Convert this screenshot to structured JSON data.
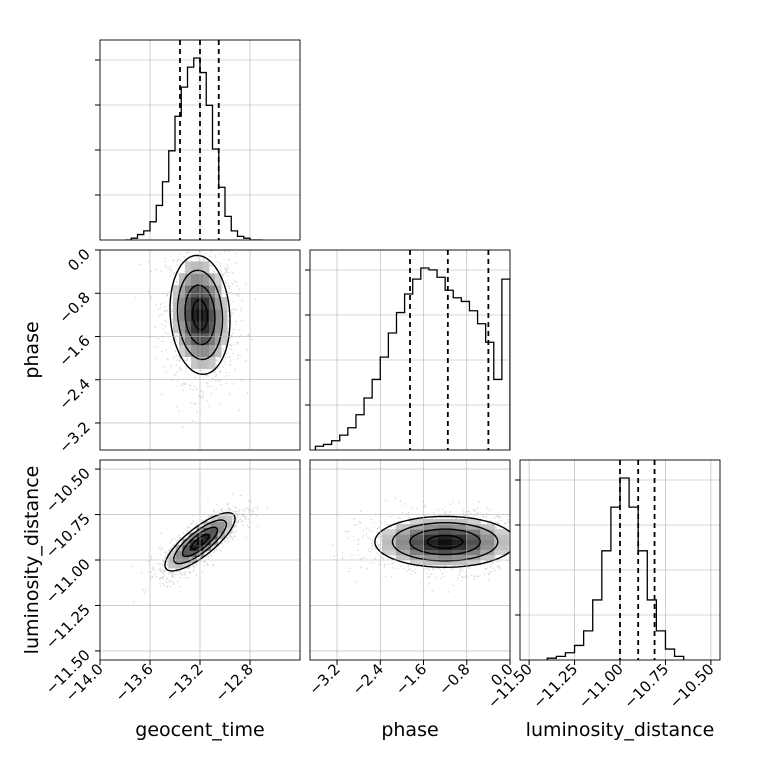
{
  "chart_data": {
    "type": "corner",
    "parameters": [
      {
        "name": "geocent_time",
        "label": "geocent_time",
        "range": [
          -14.0,
          -12.4
        ],
        "ticks": [
          -14.0,
          -13.6,
          -13.2,
          -12.8
        ],
        "tick_labels": [
          "−14.0",
          "−13.6",
          "−13.2",
          "−12.8"
        ],
        "quantiles": [
          -13.36,
          -13.2,
          -13.05
        ]
      },
      {
        "name": "phase",
        "label": "phase",
        "range": [
          -3.7,
          0.0
        ],
        "ticks": [
          -3.2,
          -2.4,
          -1.6,
          -0.8,
          0.0
        ],
        "tick_labels": [
          "−3.2",
          "−2.4",
          "−1.6",
          "−0.8",
          "0.0"
        ],
        "quantiles": [
          -1.85,
          -1.15,
          -0.4
        ]
      },
      {
        "name": "luminosity_distance",
        "label": "luminosity_distance",
        "range": [
          -11.55,
          -10.45
        ],
        "ticks": [
          -11.5,
          -11.25,
          -11.0,
          -10.75,
          -10.5
        ],
        "tick_labels": [
          "−11.50",
          "−11.25",
          "−11.00",
          "−10.75",
          "−10.50"
        ],
        "quantiles": [
          -11.0,
          -10.9,
          -10.81
        ]
      }
    ],
    "histograms": [
      {
        "param": "geocent_time",
        "bin_edges": [
          -13.8,
          -13.75,
          -13.7,
          -13.65,
          -13.6,
          -13.55,
          -13.5,
          -13.45,
          -13.4,
          -13.35,
          -13.3,
          -13.25,
          -13.2,
          -13.15,
          -13.1,
          -13.05,
          -13.0,
          -12.95,
          -12.9,
          -12.85,
          -12.8,
          -12.75,
          -12.7
        ],
        "counts": [
          0,
          0.01,
          0.03,
          0.05,
          0.1,
          0.19,
          0.32,
          0.49,
          0.68,
          0.84,
          0.95,
          1.0,
          0.92,
          0.74,
          0.5,
          0.29,
          0.13,
          0.05,
          0.02,
          0.01,
          0,
          0
        ]
      },
      {
        "param": "phase",
        "bin_edges": [
          -3.6,
          -3.45,
          -3.3,
          -3.15,
          -3.0,
          -2.85,
          -2.7,
          -2.55,
          -2.4,
          -2.25,
          -2.1,
          -1.95,
          -1.8,
          -1.65,
          -1.5,
          -1.35,
          -1.2,
          -1.05,
          -0.9,
          -0.75,
          -0.6,
          -0.45,
          -0.3,
          -0.15,
          0.0
        ],
        "counts": [
          0.02,
          0.03,
          0.05,
          0.08,
          0.12,
          0.19,
          0.28,
          0.38,
          0.5,
          0.63,
          0.74,
          0.84,
          0.92,
          0.98,
          0.97,
          0.93,
          0.86,
          0.82,
          0.8,
          0.75,
          0.68,
          0.58,
          0.38,
          0.92
        ]
      },
      {
        "param": "luminosity_distance",
        "bin_edges": [
          -11.4,
          -11.35,
          -11.3,
          -11.25,
          -11.2,
          -11.15,
          -11.1,
          -11.05,
          -11.0,
          -10.95,
          -10.9,
          -10.85,
          -10.8,
          -10.75,
          -10.7,
          -10.65
        ],
        "counts": [
          0.01,
          0.02,
          0.04,
          0.08,
          0.16,
          0.33,
          0.6,
          0.84,
          1.0,
          0.84,
          0.6,
          0.33,
          0.16,
          0.06,
          0.02
        ]
      }
    ],
    "pairs": [
      {
        "x": "geocent_time",
        "y": "phase",
        "center": [
          -13.2,
          -1.2
        ],
        "spread": [
          0.12,
          0.55
        ],
        "rho": -0.1
      },
      {
        "x": "geocent_time",
        "y": "luminosity_distance",
        "center": [
          -13.2,
          -10.9
        ],
        "spread": [
          0.14,
          0.08
        ],
        "rho": 0.8
      },
      {
        "x": "phase",
        "y": "luminosity_distance",
        "center": [
          -1.2,
          -10.9
        ],
        "spread": [
          0.65,
          0.07
        ],
        "rho": 0.0
      }
    ],
    "grid": true
  }
}
